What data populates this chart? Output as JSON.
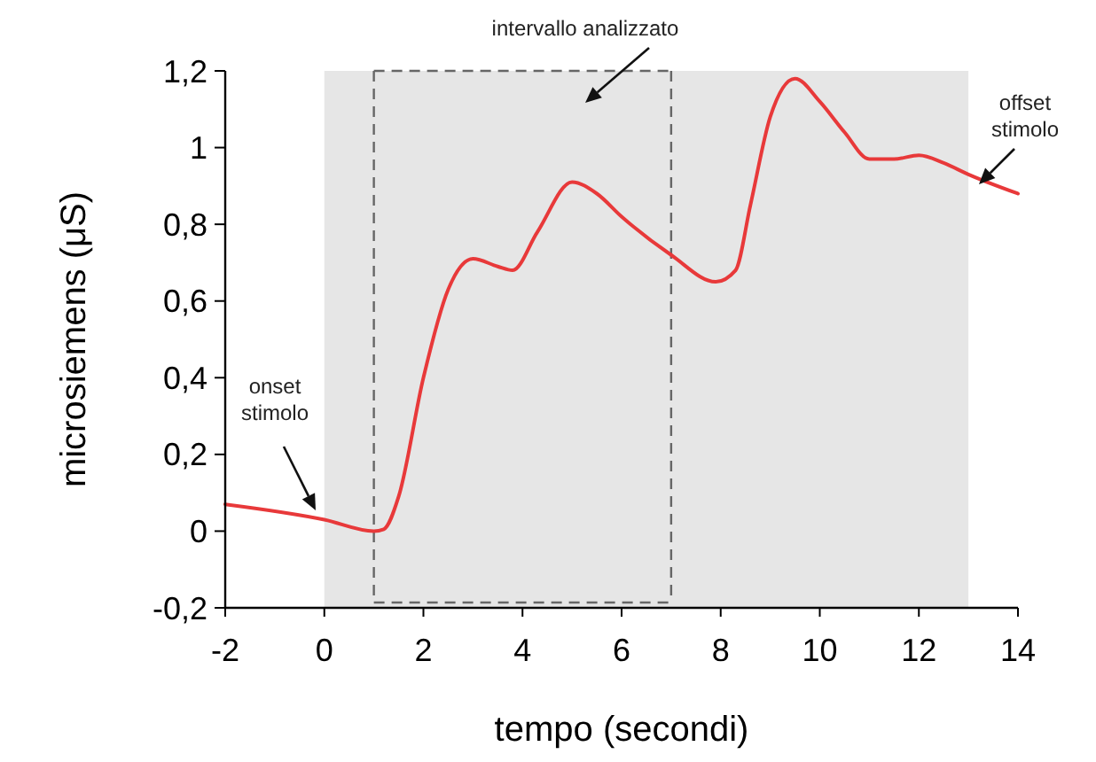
{
  "chart_data": {
    "type": "line",
    "xlabel": "tempo (secondi)",
    "ylabel": "microsiemens (μS)",
    "x": [
      -2,
      0,
      1,
      1.2,
      1.5,
      2,
      2.5,
      3,
      3.5,
      3.8,
      4.3,
      5,
      5.5,
      6,
      7,
      7.9,
      8.3,
      8.6,
      9,
      9.5,
      10,
      10.5,
      11,
      11.5,
      12,
      12.5,
      13,
      14
    ],
    "series": [
      {
        "color": "#e8393a",
        "values": [
          0.07,
          0.03,
          0,
          0.005,
          0.09,
          0.4,
          0.63,
          0.71,
          0.69,
          0.68,
          0.78,
          0.91,
          0.88,
          0.82,
          0.72,
          0.65,
          0.68,
          0.85,
          1.08,
          1.18,
          1.12,
          1.04,
          0.97,
          0.97,
          0.98,
          0.96,
          0.93,
          0.88
        ]
      }
    ],
    "xlim": [
      -2,
      14
    ],
    "xticks": [
      -2,
      0,
      2,
      4,
      6,
      8,
      10,
      12,
      14
    ],
    "ylim": [
      -0.2,
      1.2
    ],
    "yticks": [
      {
        "value": -0.2,
        "label": "-0,2"
      },
      0,
      {
        "value": 0.2,
        "label": "0,2"
      },
      {
        "value": 0.4,
        "label": "0,4"
      },
      {
        "value": 0.6,
        "label": "0,6"
      },
      {
        "value": 0.8,
        "label": "0,8"
      },
      1,
      {
        "value": 1.2,
        "label": "1,2"
      }
    ],
    "bands": [
      {
        "axis": "x",
        "from": 0,
        "to": 13,
        "label": null,
        "color": "#e6e6e6"
      }
    ],
    "ref_lines": [
      {
        "axis": "x",
        "value": 1,
        "label": null,
        "color": "#666666",
        "line_style": "dashed"
      },
      {
        "axis": "x",
        "value": 7,
        "label": null,
        "color": "#666666",
        "line_style": "dashed"
      }
    ],
    "annotations": [
      "intervallo analizzato",
      "onset stimolo",
      "offset stimolo"
    ],
    "grid": false,
    "marker": "none",
    "line_style": "solid"
  }
}
